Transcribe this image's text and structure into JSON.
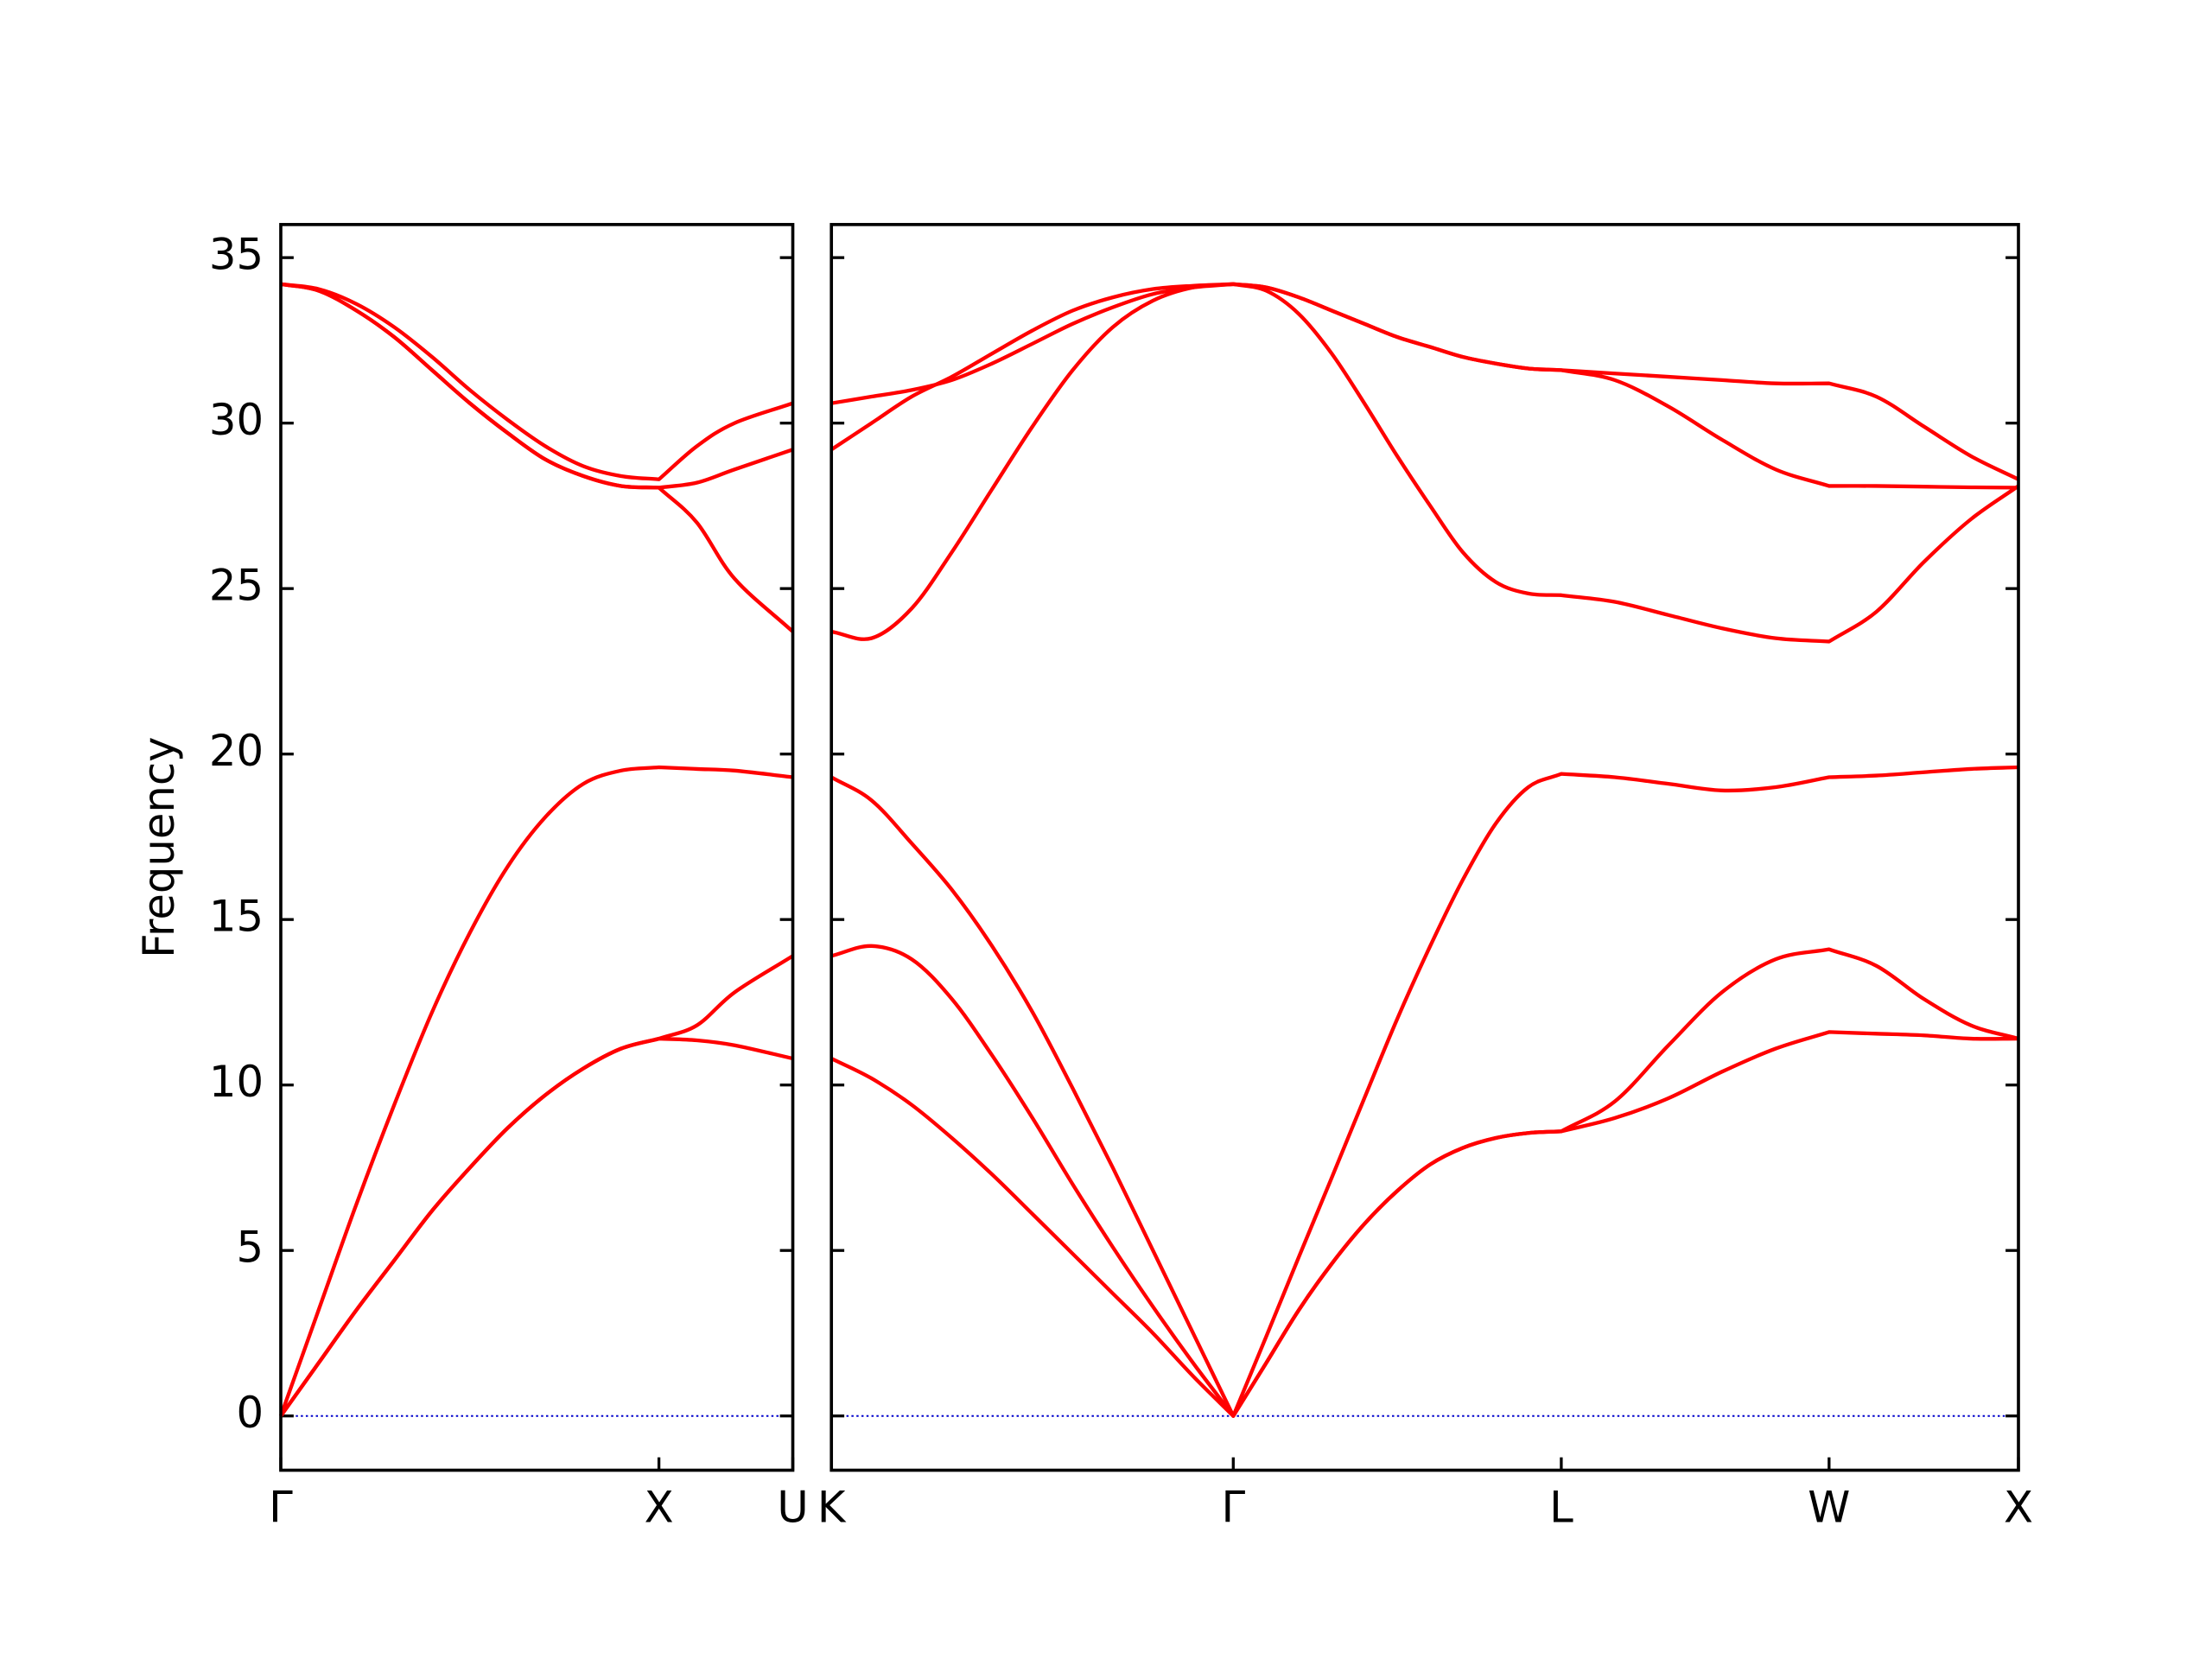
{
  "chart_data": [
    {
      "type": "line",
      "ylabel": "Frequency",
      "line_color": "#ff0000",
      "zero_line_color": "#0000cc",
      "xlim": [
        0,
        1.354
      ],
      "ylim": [
        -1.64,
        36
      ],
      "xticks": [
        {
          "value": 0,
          "label": "Γ"
        },
        {
          "value": 1,
          "label": "X"
        },
        {
          "value": 1.354,
          "label": "U"
        }
      ],
      "yticks": [
        0,
        5,
        10,
        15,
        20,
        25,
        30,
        35
      ],
      "x": [
        0,
        0.1,
        0.2,
        0.3,
        0.4,
        0.5,
        0.6,
        0.7,
        0.8,
        0.9,
        1.0,
        1.1,
        1.2,
        1.354
      ],
      "series": [
        {
          "values": [
            0,
            1.6,
            3.2,
            4.7,
            6.2,
            7.5,
            8.7,
            9.7,
            10.5,
            11.1,
            11.4,
            11.35,
            11.2,
            10.8
          ]
        },
        {
          "values": [
            0,
            1.6,
            3.2,
            4.7,
            6.2,
            7.5,
            8.7,
            9.7,
            10.5,
            11.1,
            11.4,
            11.8,
            12.8,
            13.9
          ]
        },
        {
          "values": [
            0,
            3.2,
            6.4,
            9.4,
            12.2,
            14.6,
            16.6,
            18.1,
            19.1,
            19.5,
            19.6,
            19.55,
            19.5,
            19.3
          ]
        },
        {
          "values": [
            34.2,
            34.0,
            33.4,
            32.6,
            31.6,
            30.6,
            29.7,
            28.9,
            28.4,
            28.1,
            28.05,
            27.0,
            25.3,
            23.7
          ]
        },
        {
          "values": [
            34.2,
            34.0,
            33.4,
            32.6,
            31.6,
            30.6,
            29.7,
            28.9,
            28.4,
            28.1,
            28.05,
            28.2,
            28.6,
            29.2
          ]
        },
        {
          "values": [
            34.2,
            34.05,
            33.6,
            32.9,
            32.0,
            31.0,
            30.1,
            29.3,
            28.7,
            28.4,
            28.3,
            29.3,
            30.0,
            30.6
          ]
        }
      ]
    },
    {
      "type": "line",
      "line_color": "#ff0000",
      "zero_line_color": "#0000cc",
      "xlim": [
        1.354,
        4.488
      ],
      "ylim": [
        -1.64,
        36
      ],
      "xticks": [
        {
          "value": 1.354,
          "label": "K"
        },
        {
          "value": 2.415,
          "label": "Γ"
        },
        {
          "value": 3.281,
          "label": "L"
        },
        {
          "value": 3.988,
          "label": "W"
        },
        {
          "value": 4.488,
          "label": "X"
        }
      ],
      "x": [
        1.354,
        1.46,
        1.566,
        1.672,
        1.778,
        1.885,
        1.991,
        2.097,
        2.203,
        2.309,
        2.415,
        2.502,
        2.588,
        2.675,
        2.761,
        2.848,
        2.935,
        3.021,
        3.108,
        3.194,
        3.281,
        3.422,
        3.564,
        3.705,
        3.847,
        3.988,
        4.113,
        4.238,
        4.363,
        4.488
      ],
      "series": [
        {
          "values": [
            10.8,
            10.2,
            9.4,
            8.4,
            7.3,
            6.1,
            4.9,
            3.7,
            2.5,
            1.2,
            0,
            1.6,
            3.2,
            4.6,
            5.8,
            6.8,
            7.6,
            8.1,
            8.4,
            8.55,
            8.6,
            9.0,
            9.6,
            10.4,
            11.1,
            11.6,
            11.55,
            11.5,
            11.4,
            11.4
          ]
        },
        {
          "values": [
            13.9,
            14.2,
            13.8,
            12.6,
            10.9,
            9.0,
            7.0,
            5.1,
            3.3,
            1.6,
            0,
            1.6,
            3.2,
            4.6,
            5.8,
            6.8,
            7.6,
            8.1,
            8.4,
            8.55,
            8.6,
            9.5,
            11.2,
            12.8,
            13.8,
            14.1,
            13.6,
            12.6,
            11.8,
            11.4
          ]
        },
        {
          "values": [
            19.3,
            18.6,
            17.3,
            15.9,
            14.2,
            12.2,
            9.9,
            7.5,
            5.0,
            2.5,
            0,
            2.4,
            4.8,
            7.2,
            9.6,
            12.0,
            14.2,
            16.2,
            17.9,
            19.0,
            19.4,
            19.3,
            19.1,
            18.9,
            19.0,
            19.3,
            19.35,
            19.45,
            19.55,
            19.6
          ]
        },
        {
          "values": [
            23.7,
            23.5,
            24.4,
            26.1,
            28.0,
            29.9,
            31.6,
            32.9,
            33.7,
            34.1,
            34.2,
            34.0,
            33.3,
            32.1,
            30.6,
            29.0,
            27.5,
            26.1,
            25.2,
            24.85,
            24.8,
            24.6,
            24.2,
            23.8,
            23.5,
            23.4,
            24.3,
            25.8,
            27.1,
            28.1
          ]
        },
        {
          "values": [
            29.2,
            30.0,
            30.8,
            31.4,
            32.1,
            32.8,
            33.4,
            33.8,
            34.05,
            34.15,
            34.2,
            34.1,
            33.8,
            33.4,
            33.0,
            32.6,
            32.3,
            32.0,
            31.8,
            31.65,
            31.6,
            31.3,
            30.5,
            29.5,
            28.6,
            28.1,
            28.1,
            28.08,
            28.06,
            28.05
          ]
        },
        {
          "values": [
            30.6,
            30.8,
            31.0,
            31.3,
            31.8,
            32.4,
            33.0,
            33.5,
            33.9,
            34.1,
            34.2,
            34.1,
            33.8,
            33.4,
            33.0,
            32.6,
            32.3,
            32.0,
            31.8,
            31.65,
            31.6,
            31.5,
            31.4,
            31.3,
            31.2,
            31.2,
            30.8,
            29.9,
            29.0,
            28.3
          ]
        }
      ]
    }
  ]
}
